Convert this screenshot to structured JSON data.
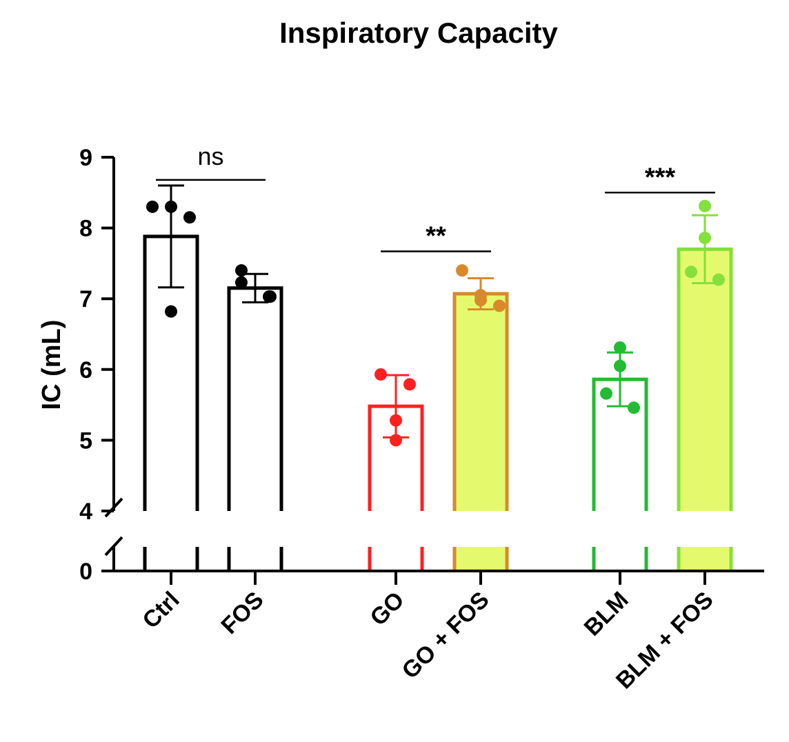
{
  "chart_data": {
    "type": "bar",
    "title": "Inspiratory Capacity",
    "ylabel": "IC (mL)",
    "xlabel": "",
    "ylim": [
      0,
      9
    ],
    "axis_break": [
      0,
      4
    ],
    "yticks": [
      "0",
      "4",
      "5",
      "6",
      "7",
      "8",
      "9"
    ],
    "categories": [
      "Ctrl",
      "FOS",
      "GO",
      "GO + FOS",
      "BLM",
      "BLM + FOS"
    ],
    "values": [
      7.88,
      7.15,
      5.48,
      7.07,
      5.86,
      7.7
    ],
    "error_sd": [
      0.72,
      0.2,
      0.44,
      0.22,
      0.38,
      0.48
    ],
    "points": [
      [
        8.3,
        8.3,
        8.15,
        6.82
      ],
      [
        7.4,
        7.23,
        7.03,
        7.03
      ],
      [
        5.93,
        5.79,
        5.28,
        5.0
      ],
      [
        7.4,
        7.05,
        6.98,
        6.9
      ],
      [
        6.31,
        6.05,
        5.66,
        5.46
      ],
      [
        8.31,
        7.86,
        7.38,
        7.27
      ]
    ],
    "bar_edge_colors": [
      "#000000",
      "#000000",
      "#ff2020",
      "#d9892a",
      "#22bb33",
      "#84e03a"
    ],
    "bar_fill_colors": [
      "#ffffff",
      "#ffffff",
      "#ffffff",
      "#e4fa6c",
      "#ffffff",
      "#e4fa6c"
    ],
    "point_colors": [
      "#000000",
      "#000000",
      "#ff2020",
      "#d9892a",
      "#22bb33",
      "#84e03a"
    ],
    "significance": [
      {
        "from": 0,
        "to": 1,
        "label": "ns",
        "level": 8.68
      },
      {
        "from": 2,
        "to": 3,
        "label": "**",
        "level": 7.67
      },
      {
        "from": 4,
        "to": 5,
        "label": "***",
        "level": 8.5
      }
    ]
  }
}
